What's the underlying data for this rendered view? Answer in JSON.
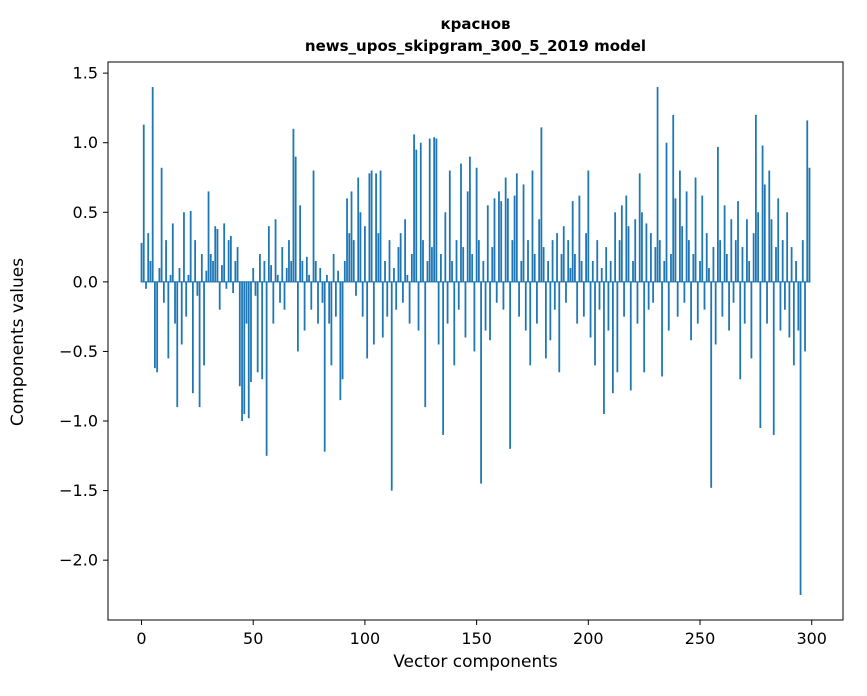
{
  "chart_data": {
    "type": "bar",
    "title": "краснов",
    "subtitle": "news_upos_skipgram_300_5_2019 model",
    "xlabel": "Vector components",
    "ylabel": "Components values",
    "bar_color": "#1f77b4",
    "axes_color": "#000000",
    "background_color": "#ffffff",
    "n_components": 300,
    "xlim": [
      -15,
      314
    ],
    "ylim": [
      -2.43,
      1.58
    ],
    "grid": false,
    "legend": "none",
    "xticks": [
      {
        "value": 0,
        "label": "0"
      },
      {
        "value": 50,
        "label": "50"
      },
      {
        "value": 100,
        "label": "100"
      },
      {
        "value": 150,
        "label": "150"
      },
      {
        "value": 200,
        "label": "200"
      },
      {
        "value": 250,
        "label": "250"
      },
      {
        "value": 300,
        "label": "300"
      }
    ],
    "yticks": [
      {
        "value": 1.5,
        "label": "1.5"
      },
      {
        "value": 1.0,
        "label": "1.0"
      },
      {
        "value": 0.5,
        "label": "0.5"
      },
      {
        "value": 0.0,
        "label": "0.0"
      },
      {
        "value": -0.5,
        "label": "−0.5"
      },
      {
        "value": -1.0,
        "label": "−1.0"
      },
      {
        "value": -1.5,
        "label": "−1.5"
      },
      {
        "value": -2.0,
        "label": "−2.0"
      }
    ],
    "x_start": 0,
    "values": [
      0.28,
      1.13,
      -0.05,
      0.35,
      0.15,
      1.4,
      -0.62,
      -0.65,
      0.1,
      0.82,
      -0.15,
      0.3,
      -0.55,
      0.05,
      0.42,
      -0.3,
      -0.9,
      0.1,
      -0.45,
      0.5,
      -0.25,
      0.05,
      0.51,
      -0.8,
      0.3,
      -0.1,
      -0.9,
      0.2,
      -0.6,
      0.08,
      0.65,
      0.2,
      0.15,
      0.4,
      0.38,
      -0.2,
      0.12,
      0.42,
      -0.05,
      0.3,
      0.33,
      -0.08,
      0.15,
      0.25,
      -0.75,
      -1.0,
      -0.95,
      -0.3,
      -0.98,
      -0.72,
      0.1,
      -0.1,
      -0.65,
      0.2,
      -0.7,
      0.15,
      -1.25,
      0.4,
      0.12,
      -0.3,
      0.45,
      0.05,
      -0.15,
      0.25,
      -0.2,
      0.1,
      0.3,
      0.15,
      1.1,
      0.9,
      -0.5,
      0.55,
      0.15,
      -0.35,
      0.18,
      0.05,
      -0.2,
      0.8,
      0.15,
      -0.3,
      0.1,
      -0.15,
      -1.22,
      0.05,
      -0.3,
      -0.6,
      0.2,
      -0.25,
      0.08,
      -0.85,
      -0.7,
      0.15,
      0.6,
      0.35,
      0.65,
      0.3,
      -0.1,
      0.75,
      0.5,
      -0.25,
      0.4,
      -0.55,
      0.78,
      0.8,
      -0.45,
      0.78,
      0.35,
      0.8,
      -0.4,
      0.15,
      -0.25,
      0.3,
      -1.5,
      0.1,
      -0.2,
      0.25,
      0.35,
      -0.15,
      0.45,
      0.05,
      -0.3,
      0.2,
      1.06,
      0.95,
      -0.35,
      1.0,
      0.3,
      -0.9,
      0.15,
      1.03,
      0.25,
      1.04,
      1.03,
      -0.45,
      0.2,
      -1.1,
      0.5,
      -0.3,
      0.8,
      0.15,
      -0.6,
      0.3,
      -0.2,
      0.85,
      0.25,
      -0.4,
      0.65,
      0.9,
      0.2,
      -0.5,
      0.82,
      0.3,
      -1.45,
      0.15,
      -0.35,
      0.55,
      -0.42,
      0.25,
      0.6,
      -0.15,
      0.65,
      0.58,
      -0.2,
      0.75,
      0.6,
      -1.2,
      0.3,
      0.62,
      0.78,
      -0.25,
      0.15,
      0.7,
      -0.35,
      0.3,
      -0.6,
      0.8,
      0.2,
      -0.3,
      0.45,
      1.11,
      0.25,
      -0.55,
      0.15,
      -0.42,
      0.3,
      -0.2,
      0.35,
      -0.65,
      0.2,
      0.4,
      -0.15,
      0.3,
      0.1,
      0.58,
      0.2,
      -0.3,
      0.62,
      0.15,
      -0.25,
      0.35,
      0.8,
      -0.4,
      0.15,
      -0.6,
      0.3,
      -0.2,
      0.1,
      -0.95,
      0.25,
      -0.35,
      0.15,
      -0.8,
      0.5,
      -0.65,
      0.3,
      0.55,
      -0.25,
      0.62,
      0.4,
      -0.78,
      0.15,
      0.45,
      -0.3,
      0.78,
      0.5,
      -0.65,
      0.42,
      -0.2,
      0.35,
      -0.15,
      0.25,
      1.4,
      0.3,
      -0.68,
      0.15,
      1.0,
      -0.35,
      0.2,
      1.2,
      0.6,
      -0.25,
      0.8,
      0.4,
      -0.15,
      0.65,
      0.3,
      -0.42,
      0.2,
      0.75,
      -0.3,
      0.15,
      0.62,
      -0.2,
      0.35,
      0.1,
      -1.48,
      0.25,
      -0.45,
      0.97,
      0.3,
      -0.25,
      0.55,
      0.2,
      -0.35,
      0.45,
      -0.15,
      0.3,
      0.58,
      -0.7,
      0.25,
      -0.3,
      0.45,
      0.15,
      -0.55,
      0.35,
      1.2,
      0.5,
      -1.05,
      0.98,
      0.7,
      -0.3,
      0.8,
      0.45,
      -1.1,
      0.25,
      0.6,
      -0.35,
      0.3,
      -0.2,
      0.5,
      -0.4,
      0.25,
      -0.6,
      0.15,
      -0.35,
      -2.25,
      0.3,
      -0.5,
      1.16,
      0.82
    ]
  }
}
